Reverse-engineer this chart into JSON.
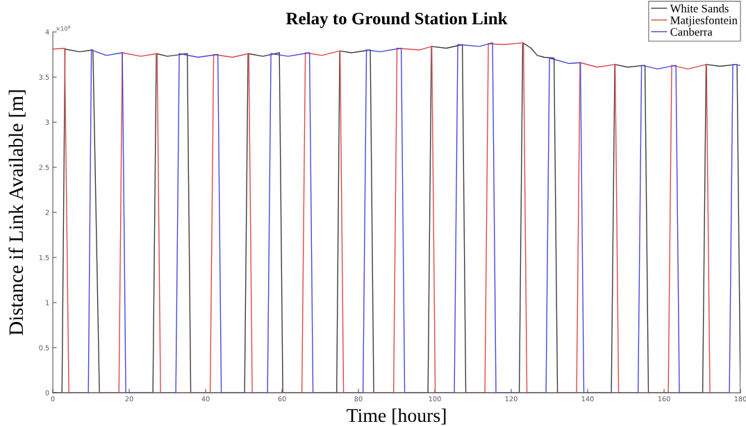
{
  "chart_data": {
    "type": "line",
    "title": "Relay to Ground Station Link",
    "xlabel": "Time [hours]",
    "ylabel": "Distance if Link Available [m]",
    "annotations": [
      "×10$^{8}$"
    ],
    "xlim": [
      0,
      180
    ],
    "xticks": [
      0,
      20,
      40,
      60,
      80,
      100,
      120,
      140,
      160,
      180
    ],
    "ylim": [
      0,
      4
    ],
    "yticks": [
      0,
      0.5,
      1,
      1.5,
      2,
      2.5,
      3,
      3.5,
      4
    ],
    "grid": false,
    "legend": "top right",
    "marker": "none",
    "line_style": "solid",
    "series": [
      {
        "name": "White Sands",
        "color": "#3a3a3a",
        "x": [
          0,
          2.4,
          3.2,
          7,
          10.5,
          12.2,
          26.2,
          27.1,
          30,
          35.2,
          36.1,
          50.2,
          51.1,
          55,
          59.3,
          60.2,
          74.3,
          75.1,
          78.2,
          83.1,
          84.0,
          98.2,
          99.1,
          103,
          107.2,
          108.1,
          122.1,
          123,
          125.2,
          126.8,
          128.6,
          131.2,
          132.1,
          146.2,
          147.1,
          150.4,
          155,
          155.9,
          170.1,
          171,
          174.6,
          179.1,
          180
        ],
        "values": [
          0,
          0,
          3.81,
          3.78,
          3.8,
          0,
          0,
          3.76,
          3.73,
          3.76,
          0,
          0,
          3.76,
          3.73,
          3.77,
          0,
          0,
          3.79,
          3.77,
          3.8,
          0,
          0,
          3.84,
          3.82,
          3.86,
          0,
          0,
          3.88,
          3.82,
          3.74,
          3.72,
          3.71,
          0,
          0,
          3.64,
          3.61,
          3.63,
          0,
          0,
          3.64,
          3.62,
          3.64,
          0
        ]
      },
      {
        "name": "Matjiesfontein",
        "color": "#e04545",
        "x": [
          0,
          3.1,
          4.2,
          17.3,
          18.2,
          23,
          27.3,
          28.2,
          41.2,
          42.1,
          47,
          51.3,
          52.2,
          65.2,
          66.1,
          70.4,
          75.2,
          76.1,
          89.2,
          90.1,
          95.9,
          99.2,
          100.1,
          113.1,
          114,
          118,
          123.2,
          124.1,
          137.1,
          138,
          142.5,
          147.2,
          148.1,
          161.1,
          162,
          166.2,
          171.1,
          172
        ],
        "values": [
          3.81,
          3.82,
          0,
          0,
          3.77,
          3.73,
          3.76,
          0,
          0,
          3.75,
          3.72,
          3.76,
          0,
          0,
          3.77,
          3.74,
          3.79,
          0,
          0,
          3.82,
          3.8,
          3.84,
          0,
          0,
          3.87,
          3.86,
          3.88,
          0,
          0,
          3.66,
          3.61,
          3.64,
          0,
          0,
          3.63,
          3.59,
          3.64,
          0
        ]
      },
      {
        "name": "Canberra",
        "color": "#4545e0",
        "x": [
          0,
          9.3,
          10.1,
          14,
          18.2,
          19.1,
          32.2,
          33.1,
          38,
          43.2,
          44.1,
          56.2,
          57.1,
          61.6,
          67.2,
          68.1,
          81.2,
          82.1,
          85.6,
          91.2,
          92.1,
          105.1,
          106,
          111.7,
          115.1,
          116,
          129.1,
          130,
          135.2,
          138.1,
          139,
          153.2,
          154.1,
          158.3,
          163.1,
          164,
          177.1,
          178,
          180
        ],
        "values": [
          0,
          0,
          3.8,
          3.74,
          3.77,
          0,
          0,
          3.76,
          3.72,
          3.75,
          0,
          0,
          3.76,
          3.73,
          3.77,
          0,
          0,
          3.8,
          3.78,
          3.82,
          0,
          0,
          3.86,
          3.84,
          3.88,
          0,
          0,
          3.71,
          3.65,
          3.66,
          0,
          0,
          3.63,
          3.59,
          3.63,
          0,
          0,
          3.64,
          3.63
        ]
      }
    ]
  }
}
